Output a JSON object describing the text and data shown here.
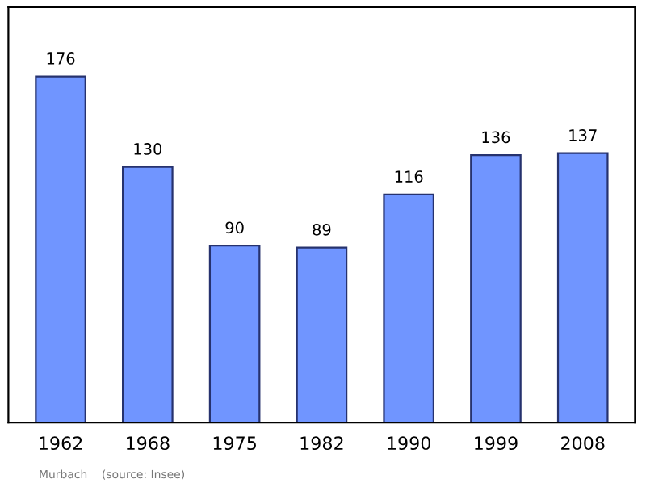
{
  "chart_data": {
    "type": "bar",
    "categories": [
      "1962",
      "1968",
      "1975",
      "1982",
      "1990",
      "1999",
      "2008"
    ],
    "values": [
      176,
      130,
      90,
      89,
      116,
      136,
      137
    ],
    "color": "#7095ff",
    "data_labels": true,
    "grid": false,
    "annotations": [
      "Murbach    (source: Insee)"
    ]
  }
}
